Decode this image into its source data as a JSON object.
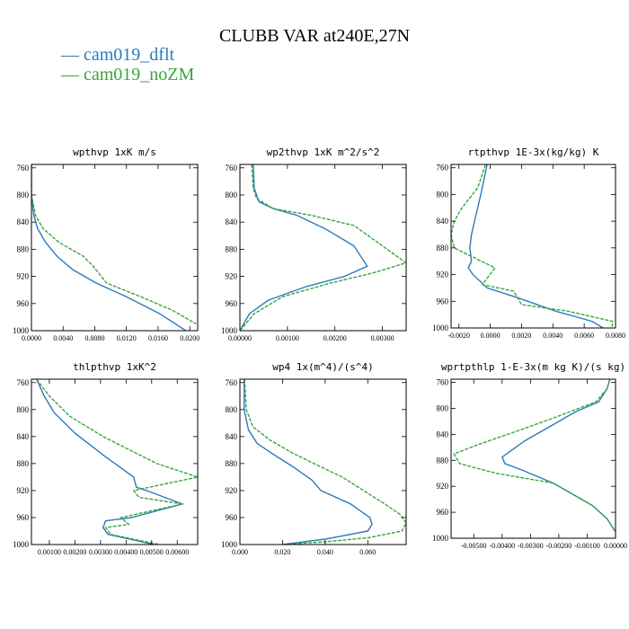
{
  "title": "CLUBB VAR at240E,27N",
  "legend": [
    {
      "label": "— cam019_dflt",
      "color": "#2b7bba"
    },
    {
      "label": "— cam019_noZM",
      "color": "#3aa53a"
    }
  ],
  "colors": {
    "dflt": "#2b7bba",
    "noZM": "#3aa53a"
  },
  "chart_data": [
    {
      "type": "line",
      "title": "wpthvp  1xK m/s",
      "xlim": [
        0.0,
        0.021
      ],
      "ylim": [
        1000,
        755
      ],
      "xticks": [
        "0.0000",
        "0.0040",
        "0.0080",
        "0.0120",
        "0.0160",
        "0.0200"
      ],
      "xtick_values": [
        0.0,
        0.004,
        0.008,
        0.012,
        0.016,
        0.02
      ],
      "yticks": [
        760,
        800,
        840,
        880,
        920,
        960,
        1000
      ],
      "series": [
        {
          "name": "cam019_dflt",
          "style": "solid",
          "x": [
            0.0,
            0.0,
            0.0003,
            0.0008,
            0.0018,
            0.0032,
            0.0052,
            0.0082,
            0.012,
            0.0162,
            0.0195
          ],
          "y": [
            755,
            800,
            830,
            850,
            870,
            890,
            910,
            930,
            950,
            975,
            1000
          ]
        },
        {
          "name": "cam019_noZM",
          "style": "dashed",
          "x": [
            0.0,
            0.0,
            0.0005,
            0.0015,
            0.0035,
            0.0065,
            0.0078,
            0.0095,
            0.0138,
            0.0178,
            0.0208
          ],
          "y": [
            755,
            800,
            830,
            850,
            870,
            890,
            905,
            930,
            950,
            970,
            990
          ]
        }
      ]
    },
    {
      "type": "line",
      "title": "wp2thvp  1xK m^2/s^2",
      "xlim": [
        0.0,
        0.0035
      ],
      "ylim": [
        1000,
        755
      ],
      "xticks": [
        "0.00000",
        "0.00100",
        "0.00200",
        "0.00300"
      ],
      "xtick_values": [
        0.0,
        0.001,
        0.002,
        0.003
      ],
      "yticks": [
        760,
        800,
        840,
        880,
        920,
        960,
        1000
      ],
      "series": [
        {
          "name": "cam019_dflt",
          "style": "solid",
          "x": [
            0.00028,
            0.0003,
            0.0004,
            0.0007,
            0.0012,
            0.0018,
            0.0024,
            0.00268,
            0.0022,
            0.0014,
            0.0006,
            0.0002,
            0.0
          ],
          "y": [
            755,
            790,
            810,
            820,
            830,
            850,
            875,
            905,
            920,
            935,
            955,
            975,
            1000
          ]
        },
        {
          "name": "cam019_noZM",
          "style": "dashed",
          "x": [
            0.00025,
            0.00028,
            0.00035,
            0.0007,
            0.0015,
            0.0024,
            0.0035,
            0.0028,
            0.0019,
            0.0009,
            0.0003,
            0.0
          ],
          "y": [
            755,
            790,
            805,
            820,
            830,
            845,
            900,
            915,
            930,
            950,
            975,
            1000
          ]
        }
      ]
    },
    {
      "type": "line",
      "title": "rtpthvp  1E-3x(kg/kg) K",
      "xlim": [
        -0.0025,
        0.008
      ],
      "ylim": [
        1000,
        755
      ],
      "xticks": [
        "-0.0020",
        "0.0000",
        "0.0020",
        "0.0040",
        "0.0060",
        "0.0080"
      ],
      "xtick_values": [
        -0.002,
        0.0,
        0.002,
        0.004,
        0.006,
        0.008
      ],
      "yticks": [
        760,
        800,
        840,
        880,
        920,
        960,
        1000
      ],
      "series": [
        {
          "name": "cam019_dflt",
          "style": "solid",
          "x": [
            -0.0002,
            -0.0006,
            -0.001,
            -0.0012,
            -0.0013,
            -0.0012,
            -0.0014,
            -0.0011,
            -0.0002,
            0.0018,
            0.0042,
            0.0065,
            0.0072
          ],
          "y": [
            755,
            800,
            840,
            860,
            880,
            900,
            910,
            920,
            940,
            955,
            975,
            990,
            1000
          ]
        },
        {
          "name": "cam019_noZM",
          "style": "dashed",
          "x": [
            -0.0003,
            -0.0008,
            -0.0018,
            -0.0023,
            -0.0025,
            -0.0023,
            0.0003,
            -0.0005,
            0.0015,
            0.002,
            0.005,
            0.0078,
            0.0078
          ],
          "y": [
            755,
            790,
            820,
            840,
            860,
            880,
            910,
            935,
            945,
            965,
            975,
            990,
            998
          ]
        }
      ]
    },
    {
      "type": "line",
      "title": "thlpthvp  1xK^2",
      "xlim": [
        0.0003,
        0.0068
      ],
      "ylim": [
        1000,
        755
      ],
      "xticks": [
        "0.00100",
        "0.00200",
        "0.00300",
        "0.00400",
        "0.00500",
        "0.00600"
      ],
      "xtick_values": [
        0.001,
        0.002,
        0.003,
        0.004,
        0.005,
        0.006
      ],
      "yticks": [
        760,
        800,
        840,
        880,
        920,
        960,
        1000
      ],
      "series": [
        {
          "name": "cam019_dflt",
          "style": "solid",
          "x": [
            0.0005,
            0.0008,
            0.0012,
            0.002,
            0.0032,
            0.0043,
            0.0044,
            0.0048,
            0.0062,
            0.0042,
            0.0032,
            0.0031,
            0.0033,
            0.0051
          ],
          "y": [
            755,
            780,
            805,
            835,
            870,
            900,
            915,
            920,
            940,
            960,
            965,
            975,
            985,
            1000
          ]
        },
        {
          "name": "cam019_noZM",
          "style": "dashed",
          "x": [
            0.0005,
            0.001,
            0.0018,
            0.0031,
            0.0052,
            0.0068,
            0.0043,
            0.0045,
            0.0062,
            0.0038,
            0.0041,
            0.0032,
            0.0034,
            0.0053
          ],
          "y": [
            755,
            780,
            810,
            840,
            880,
            900,
            920,
            930,
            940,
            960,
            970,
            975,
            985,
            1000
          ]
        }
      ]
    },
    {
      "type": "line",
      "title": "wp4  1x(m^4)/(s^4)",
      "xlim": [
        0.0,
        0.078
      ],
      "ylim": [
        1000,
        755
      ],
      "xticks": [
        "0.000",
        "0.020",
        "0.040",
        "0.060"
      ],
      "xtick_values": [
        0.0,
        0.02,
        0.04,
        0.06
      ],
      "yticks": [
        760,
        800,
        840,
        880,
        920,
        960,
        1000
      ],
      "series": [
        {
          "name": "cam019_dflt",
          "style": "solid",
          "x": [
            0.002,
            0.002,
            0.004,
            0.008,
            0.015,
            0.025,
            0.034,
            0.038,
            0.052,
            0.061,
            0.062,
            0.06,
            0.04,
            0.02
          ],
          "y": [
            755,
            800,
            830,
            850,
            865,
            885,
            905,
            920,
            940,
            960,
            970,
            980,
            992,
            1000
          ]
        },
        {
          "name": "cam019_noZM",
          "style": "dashed",
          "x": [
            0.0022,
            0.003,
            0.006,
            0.014,
            0.025,
            0.038,
            0.048,
            0.058,
            0.068,
            0.075,
            0.078,
            0.076,
            0.06,
            0.04,
            0.02
          ],
          "y": [
            755,
            800,
            825,
            845,
            865,
            885,
            900,
            920,
            940,
            955,
            968,
            980,
            990,
            996,
            1000
          ]
        }
      ]
    },
    {
      "type": "line",
      "title": "wprtpthlp  1-E-3x(m kg K)/(s kg)",
      "xlim": [
        -0.0058,
        0.0
      ],
      "ylim": [
        1000,
        755
      ],
      "xticks": [
        "-0.00500",
        "-0.00400",
        "-0.00300",
        "-0.00200",
        "-0.00100",
        "0.00000"
      ],
      "xtick_values": [
        -0.005,
        -0.004,
        -0.003,
        -0.002,
        -0.001,
        0.0
      ],
      "yticks": [
        760,
        800,
        840,
        880,
        920,
        960,
        1000
      ],
      "series": [
        {
          "name": "cam019_dflt",
          "style": "solid",
          "x": [
            -0.0002,
            -0.0003,
            -0.0006,
            -0.0014,
            -0.0022,
            -0.0032,
            -0.004,
            -0.0039,
            -0.0033,
            -0.0022,
            -0.0016,
            -0.0008,
            -0.0003,
            0.0
          ],
          "y": [
            755,
            770,
            790,
            805,
            825,
            850,
            875,
            885,
            895,
            915,
            930,
            950,
            970,
            990
          ]
        },
        {
          "name": "cam019_noZM",
          "style": "dashed",
          "x": [
            -0.0002,
            -0.0003,
            -0.0007,
            -0.0022,
            -0.0038,
            -0.0048,
            -0.0057,
            -0.0055,
            -0.0042,
            -0.0022,
            -0.0016,
            -0.0008,
            -0.0003,
            0.0
          ],
          "y": [
            755,
            770,
            790,
            815,
            840,
            855,
            870,
            885,
            900,
            915,
            930,
            950,
            970,
            990
          ]
        }
      ]
    }
  ]
}
